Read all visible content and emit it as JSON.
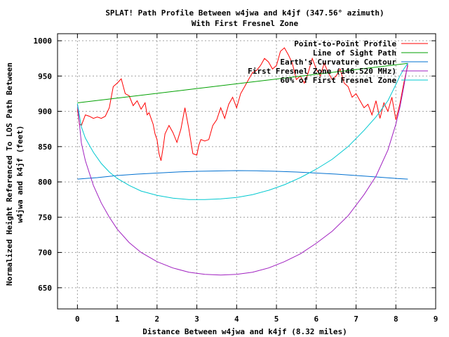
{
  "chart_data": {
    "type": "line",
    "title": "SPLAT! Path Profile Between w4jwa and k4jf (347.56° azimuth)",
    "subtitle": "With First Fresnel Zone",
    "xlabel": "Distance Between w4jwa and k4jf (8.32 miles)",
    "ylabel_line1": "Normalized Height Referenced To LOS Path Between",
    "ylabel_line2": "w4jwa and k4jf (feet)",
    "xlim": [
      -0.5,
      9
    ],
    "ylim": [
      620,
      1010
    ],
    "xticks": [
      0,
      1,
      2,
      3,
      4,
      5,
      6,
      7,
      8,
      9
    ],
    "yticks": [
      650,
      700,
      750,
      800,
      850,
      900,
      950,
      1000
    ],
    "grid": true,
    "legend_position": "top-right",
    "series": [
      {
        "name": "Point-to-Point Profile",
        "color": "#ff0000",
        "x": [
          0,
          0.05,
          0.1,
          0.2,
          0.3,
          0.4,
          0.5,
          0.6,
          0.7,
          0.8,
          0.9,
          1.0,
          1.1,
          1.2,
          1.3,
          1.4,
          1.5,
          1.6,
          1.7,
          1.75,
          1.8,
          1.85,
          1.9,
          1.95,
          2.0,
          2.05,
          2.1,
          2.15,
          2.2,
          2.3,
          2.4,
          2.5,
          2.6,
          2.7,
          2.8,
          2.9,
          3.0,
          3.05,
          3.1,
          3.2,
          3.3,
          3.4,
          3.5,
          3.6,
          3.7,
          3.8,
          3.9,
          4.0,
          4.1,
          4.2,
          4.3,
          4.4,
          4.5,
          4.6,
          4.7,
          4.8,
          4.9,
          5.0,
          5.1,
          5.2,
          5.3,
          5.4,
          5.5,
          5.6,
          5.7,
          5.8,
          5.9,
          6.0,
          6.1,
          6.2,
          6.3,
          6.4,
          6.5,
          6.6,
          6.7,
          6.8,
          6.9,
          7.0,
          7.1,
          7.2,
          7.3,
          7.4,
          7.5,
          7.6,
          7.7,
          7.8,
          7.9,
          8.0,
          8.1,
          8.2,
          8.3
        ],
        "values": [
          903,
          882,
          880,
          895,
          893,
          890,
          892,
          890,
          893,
          905,
          935,
          940,
          946,
          925,
          922,
          908,
          915,
          903,
          912,
          895,
          898,
          890,
          882,
          868,
          860,
          840,
          830,
          848,
          868,
          880,
          870,
          856,
          875,
          905,
          875,
          840,
          838,
          852,
          860,
          858,
          860,
          880,
          888,
          905,
          890,
          910,
          920,
          905,
          925,
          935,
          945,
          955,
          958,
          965,
          975,
          970,
          960,
          965,
          985,
          990,
          980,
          968,
          945,
          950,
          940,
          955,
          975,
          960,
          950,
          968,
          955,
          945,
          950,
          960,
          940,
          935,
          920,
          925,
          915,
          905,
          910,
          895,
          915,
          890,
          912,
          900,
          920,
          888,
          910,
          940,
          965
        ]
      },
      {
        "name": "Line of Sight Path",
        "color": "#00a000",
        "x": [
          0,
          8.3
        ],
        "values": [
          912,
          968
        ]
      },
      {
        "name": "Earth's Curvature Contour",
        "color": "#0070d0",
        "x": [
          0,
          0.5,
          1,
          1.5,
          2,
          2.5,
          3,
          3.5,
          4,
          4.5,
          5,
          5.5,
          6,
          6.5,
          7,
          7.5,
          8,
          8.3
        ],
        "values": [
          804,
          806,
          809,
          811,
          812.5,
          814,
          815,
          815.5,
          816,
          815.7,
          815,
          814,
          812.5,
          811,
          809,
          807,
          805,
          804
        ]
      },
      {
        "name": "First Fresnel Zone (146.520 MHz)",
        "color": "#a020c0",
        "x": [
          0,
          0.1,
          0.2,
          0.4,
          0.6,
          0.8,
          1.0,
          1.3,
          1.6,
          2.0,
          2.4,
          2.8,
          3.2,
          3.6,
          4.0,
          4.4,
          4.8,
          5.2,
          5.6,
          6.0,
          6.4,
          6.8,
          7.2,
          7.5,
          7.8,
          8.0,
          8.1,
          8.2,
          8.3
        ],
        "values": [
          910,
          855,
          830,
          795,
          770,
          750,
          733,
          714,
          700,
          687,
          678,
          672,
          669,
          668,
          669,
          672,
          678,
          687,
          698,
          713,
          730,
          752,
          782,
          808,
          845,
          882,
          905,
          935,
          968
        ]
      },
      {
        "name": "60% of First Fresnel Zone",
        "color": "#00c8d0",
        "x": [
          0,
          0.1,
          0.2,
          0.4,
          0.6,
          0.8,
          1.0,
          1.3,
          1.6,
          2.0,
          2.4,
          2.8,
          3.2,
          3.6,
          4.0,
          4.4,
          4.8,
          5.2,
          5.6,
          6.0,
          6.4,
          6.8,
          7.2,
          7.5,
          7.8,
          8.0,
          8.1,
          8.2,
          8.3
        ],
        "values": [
          911,
          878,
          862,
          842,
          826,
          814,
          805,
          795,
          787,
          781,
          777,
          775,
          775,
          776,
          778,
          782,
          788,
          796,
          806,
          818,
          832,
          850,
          873,
          892,
          915,
          938,
          950,
          960,
          968
        ]
      }
    ]
  }
}
